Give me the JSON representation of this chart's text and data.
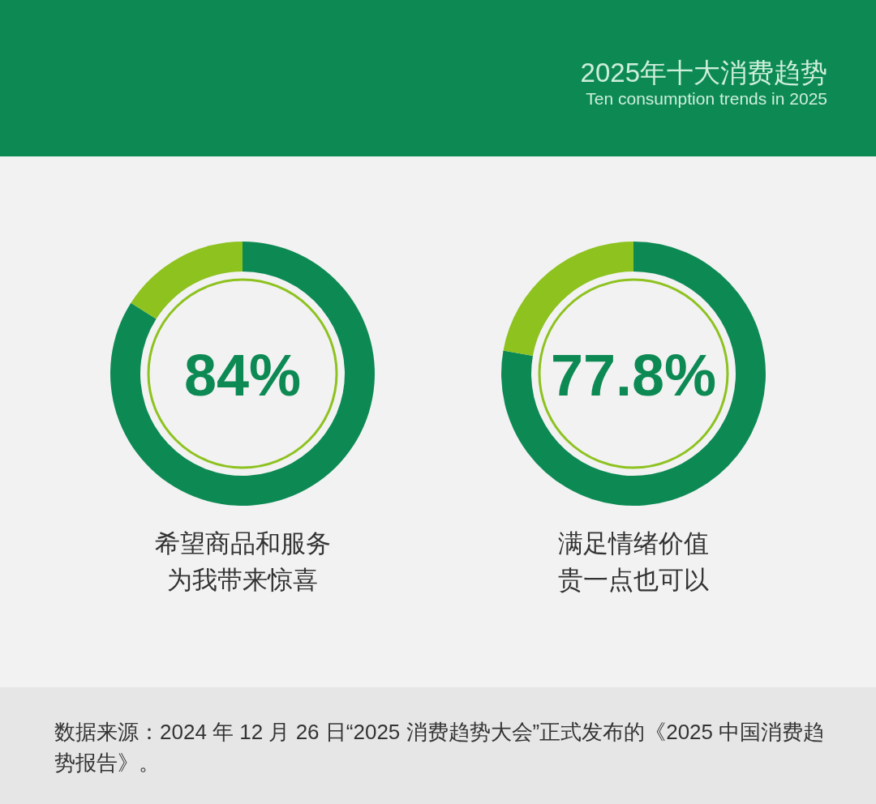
{
  "chart_data": [
    {
      "type": "other",
      "title": "2025年十大消费趋势",
      "subtitle": "Ten consumption trends in 2025"
    },
    {
      "type": "donut",
      "title": "希望商品和服务为我带来惊喜",
      "categories": [
        null,
        null
      ],
      "values": [
        84,
        16
      ],
      "colors": [
        "#0d8a54",
        "#8dc21f"
      ],
      "value_labels": [
        "84%",
        null
      ]
    },
    {
      "type": "donut",
      "title": "满足情绪价值贵一点也可以",
      "categories": [
        null,
        null
      ],
      "values": [
        77.8,
        22.2
      ],
      "colors": [
        "#0d8a54",
        "#8dc21f"
      ],
      "value_labels": [
        "77.8%",
        null
      ]
    },
    {
      "type": "other",
      "annotations": [
        "数据来源：2024 年 12 月 26 日“2025 消费趋势大会”正式发布的《2025 中国消费趋势报告》。"
      ]
    }
  ]
}
